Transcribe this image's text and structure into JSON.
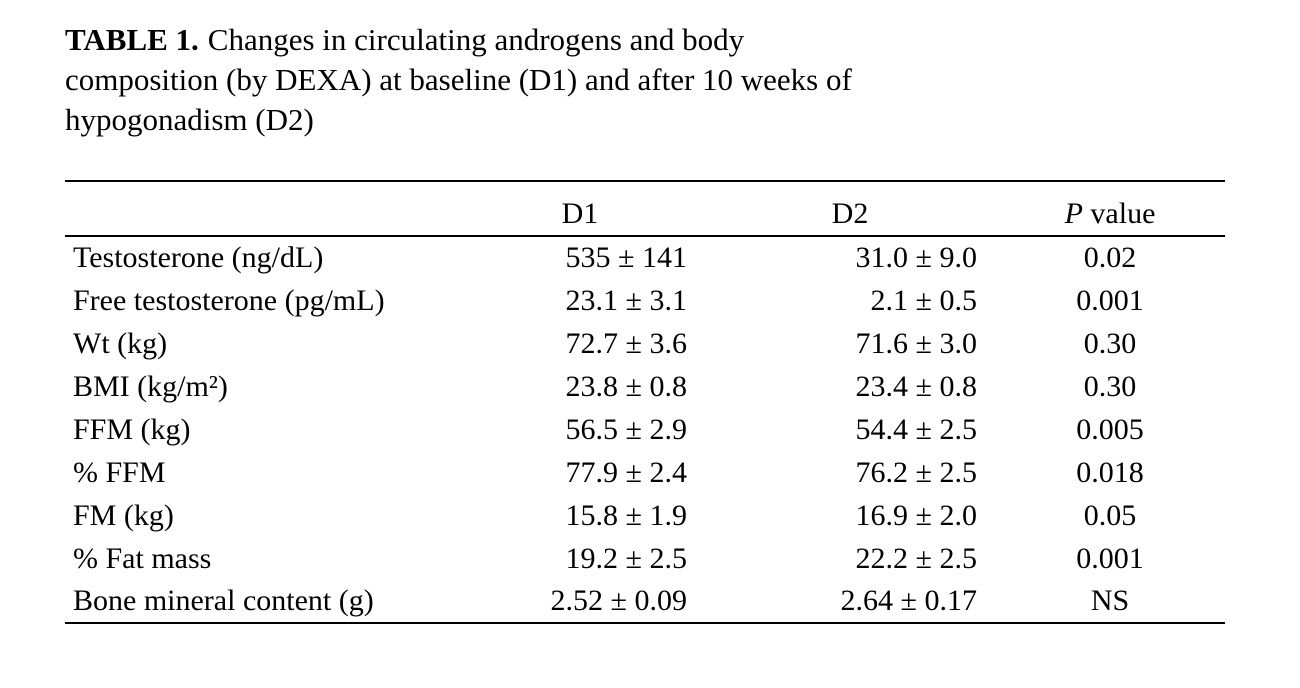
{
  "title": {
    "line1_bold": "TABLE 1.",
    "line1_rest": "Changes in circulating androgens and body",
    "line2": "composition (by DEXA) at baseline (D1) and after 10 weeks of",
    "line3": "hypogonadism (D2)"
  },
  "table": {
    "header": {
      "col1": "",
      "col2": "D1",
      "col3": "D2",
      "p_italic": "P",
      "p_rest": " value"
    },
    "rows": [
      {
        "label": "Testosterone (ng/dL)",
        "d1": "535 ± 141",
        "d2": "31.0 ± 9.0",
        "p": "0.02"
      },
      {
        "label": "Free testosterone (pg/mL)",
        "d1": "23.1 ± 3.1",
        "d2": "2.1 ± 0.5",
        "p": "0.001"
      },
      {
        "label": "Wt (kg)",
        "d1": "72.7 ± 3.6",
        "d2": "71.6 ± 3.0",
        "p": "0.30"
      },
      {
        "label": "BMI (kg/m²)",
        "d1": "23.8 ± 0.8",
        "d2": "23.4 ± 0.8",
        "p": "0.30"
      },
      {
        "label": "FFM (kg)",
        "d1": "56.5 ± 2.9",
        "d2": "54.4 ± 2.5",
        "p": "0.005"
      },
      {
        "label": "% FFM",
        "d1": "77.9 ± 2.4",
        "d2": "76.2 ± 2.5",
        "p": "0.018"
      },
      {
        "label": "FM (kg)",
        "d1": "15.8 ± 1.9",
        "d2": "16.9 ± 2.0",
        "p": "0.05"
      },
      {
        "label": "% Fat mass",
        "d1": "19.2 ± 2.5",
        "d2": "22.2 ± 2.5",
        "p": "0.001"
      },
      {
        "label": "Bone mineral content (g)",
        "d1": "2.52 ± 0.09",
        "d2": "2.64 ± 0.17",
        "p": "NS"
      }
    ]
  }
}
